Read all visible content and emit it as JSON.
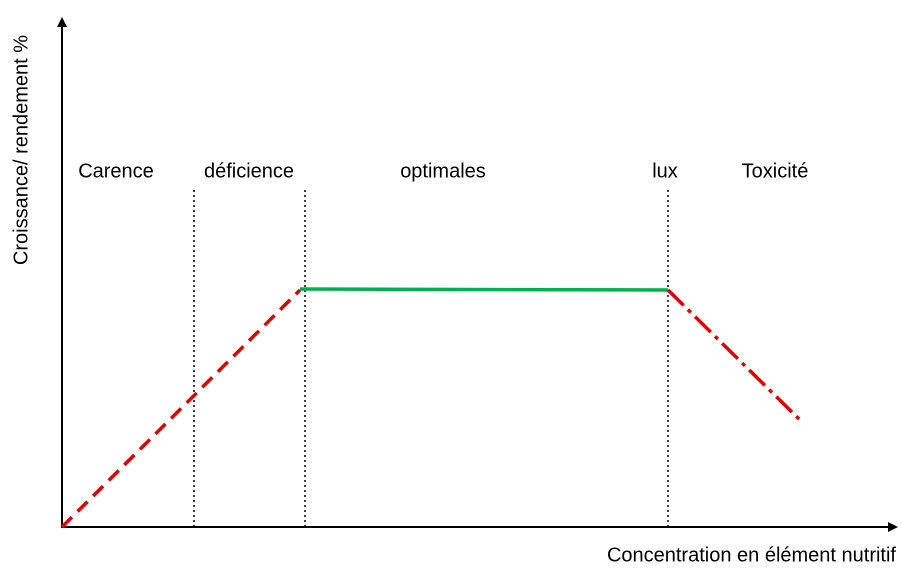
{
  "axes": {
    "x_label": "Concentration en élément nutritif",
    "y_label": "Croissance/ rendement %"
  },
  "zones": [
    "Carence",
    "déficience",
    "optimales",
    "lux",
    "Toxicité"
  ]
}
